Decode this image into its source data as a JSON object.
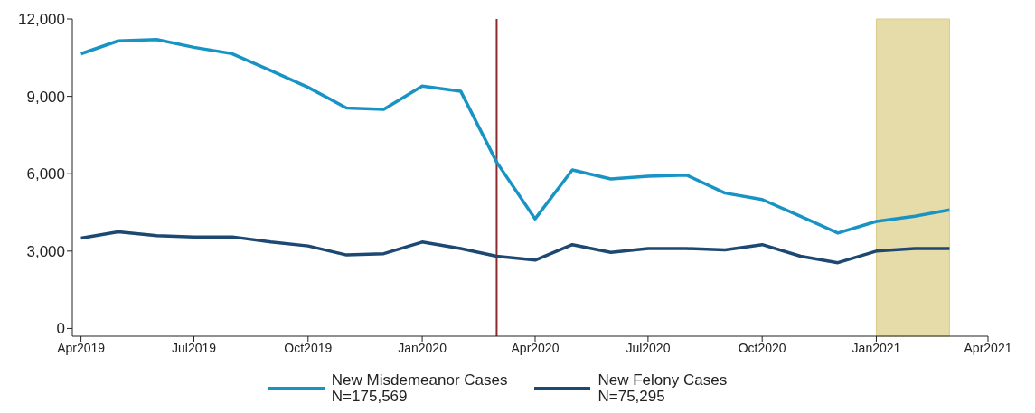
{
  "chart_data": {
    "type": "line",
    "x": [
      "2019-04",
      "2019-05",
      "2019-06",
      "2019-07",
      "2019-08",
      "2019-09",
      "2019-10",
      "2019-11",
      "2019-12",
      "2020-01",
      "2020-02",
      "2020-03",
      "2020-04",
      "2020-05",
      "2020-06",
      "2020-07",
      "2020-08",
      "2020-09",
      "2020-10",
      "2020-11",
      "2020-12",
      "2021-01",
      "2021-02",
      "2021-03"
    ],
    "series": [
      {
        "name": "New Misdemeanor Cases\nN=175,569",
        "color": "#1793c4",
        "values": [
          10650,
          11150,
          11200,
          10900,
          10650,
          10000,
          9350,
          8550,
          8500,
          9400,
          9200,
          6450,
          4250,
          6150,
          5800,
          5900,
          5950,
          5250,
          5000,
          4350,
          3700,
          4150,
          4350,
          4600
        ]
      },
      {
        "name": "New Felony Cases\nN=75,295",
        "color": "#1c4872",
        "values": [
          3500,
          3750,
          3600,
          3550,
          3550,
          3350,
          3200,
          2850,
          2900,
          3350,
          3100,
          2800,
          2650,
          3250,
          2950,
          3100,
          3100,
          3050,
          3250,
          2800,
          2550,
          3000,
          3100,
          3100
        ]
      }
    ],
    "xlim": [
      "2019-03-25",
      "2021-04"
    ],
    "xticks": [
      {
        "value": "2019-04",
        "label": "Apr2019"
      },
      {
        "value": "2019-07",
        "label": "Jul2019"
      },
      {
        "value": "2019-10",
        "label": "Oct2019"
      },
      {
        "value": "2020-01",
        "label": "Jan2020"
      },
      {
        "value": "2020-04",
        "label": "Apr2020"
      },
      {
        "value": "2020-07",
        "label": "Jul2020"
      },
      {
        "value": "2020-10",
        "label": "Oct2020"
      },
      {
        "value": "2021-01",
        "label": "Jan2021"
      },
      {
        "value": "2021-04",
        "label": "Apr2021"
      }
    ],
    "ylim": [
      -300,
      12000
    ],
    "yticks": [
      {
        "value": 0,
        "label": "0"
      },
      {
        "value": 3000,
        "label": "3,000"
      },
      {
        "value": 6000,
        "label": "6,000"
      },
      {
        "value": 9000,
        "label": "9,000"
      },
      {
        "value": 12000,
        "label": "12,000"
      }
    ],
    "ref_lines": [
      {
        "axis": "x",
        "value": "2020-03",
        "color": "#8c2b2b"
      }
    ],
    "bands": [
      {
        "axis": "x",
        "from": "2021-01",
        "to": "2021-03",
        "color": "#e6dcaa"
      }
    ],
    "grid": false,
    "legend": "bottom",
    "marker": "none",
    "line_style": "solid"
  }
}
